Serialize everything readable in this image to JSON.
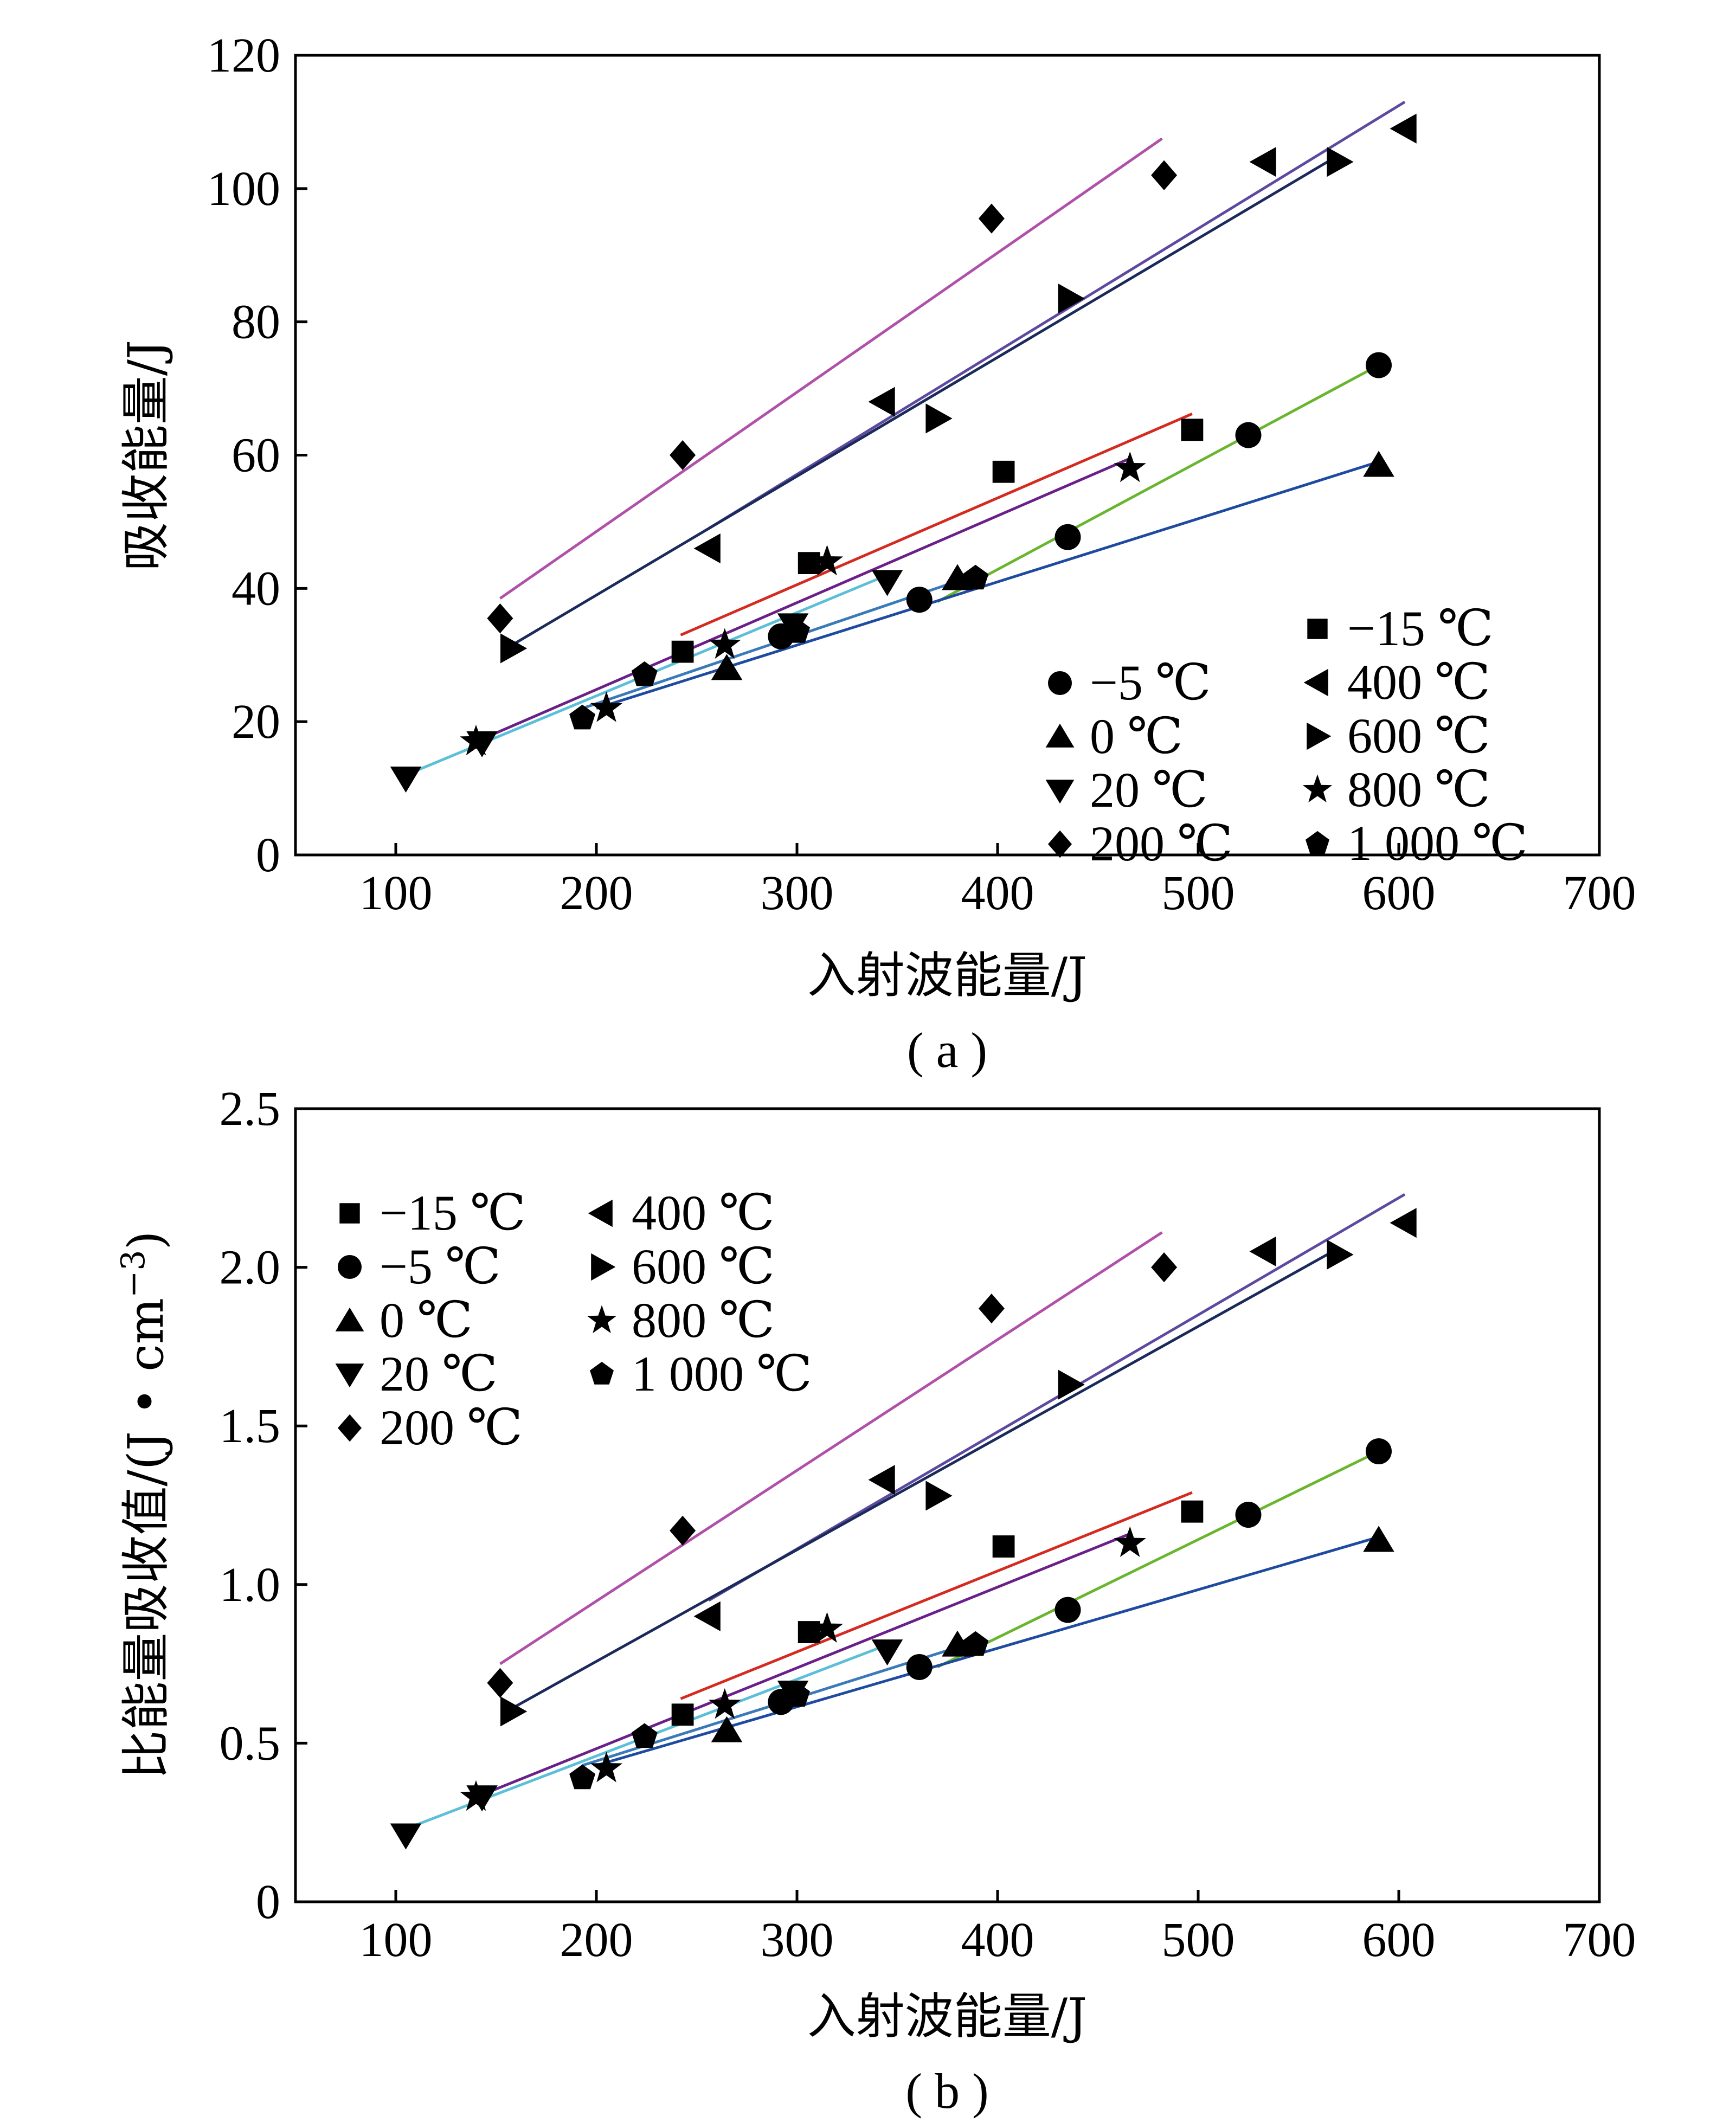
{
  "chart_data": [
    {
      "id": "a",
      "type": "scatter",
      "caption": "( a )",
      "xlabel": "入射波能量/J",
      "ylabel": "吸收能量/J",
      "ylabel_sup": "",
      "ylabel_tail": "",
      "xlim": [
        50,
        700
      ],
      "ylim": [
        0,
        120
      ],
      "xticks": [
        100,
        200,
        300,
        400,
        500,
        600,
        700
      ],
      "yticks": [
        0,
        20,
        40,
        60,
        80,
        100,
        120
      ],
      "ytick_decimals": 0,
      "legend_placement": "bottom-right",
      "series": [
        {
          "name": "−15 ℃",
          "marker": "square",
          "points": [
            [
              243,
              30.5
            ],
            [
              306,
              43.8
            ],
            [
              403,
              57.5
            ],
            [
              497,
              63.8
            ]
          ],
          "fit": {
            "x": [
              242,
              497
            ],
            "y": [
              33.0,
              66.2
            ],
            "color": "#d42a20"
          }
        },
        {
          "name": "−5 ℃",
          "marker": "circle",
          "points": [
            [
              292,
              32.8
            ],
            [
              361,
              38.3
            ],
            [
              435,
              47.7
            ],
            [
              525,
              63.0
            ],
            [
              590,
              73.5
            ]
          ],
          "fit": {
            "x": [
              370,
              590
            ],
            "y": [
              38.0,
              73.5
            ],
            "color": "#6ab52e"
          }
        },
        {
          "name": "0 ℃",
          "marker": "triangle-up",
          "points": [
            [
              265,
              28.0
            ],
            [
              380,
              41.5
            ],
            [
              590,
              58.5
            ]
          ],
          "fit": {
            "x": [
              200,
              590
            ],
            "y": [
              22.0,
              59.0
            ],
            "color": "#1e4aa0"
          }
        },
        {
          "name": "20 ℃",
          "marker": "triangle-down",
          "points": [
            [
              105,
              11.5
            ],
            [
              143,
              16.8
            ],
            [
              298,
              34.5
            ],
            [
              345,
              41.0
            ]
          ],
          "fit": {
            "x": [
              105,
              345
            ],
            "y": [
              12.0,
              42.0
            ],
            "color": "#5bbfd8"
          }
        },
        {
          "name": "200 ℃",
          "marker": "diamond",
          "points": [
            [
              152,
              35.5
            ],
            [
              243,
              60.0
            ],
            [
              397,
              95.5
            ],
            [
              483,
              102.0
            ]
          ],
          "fit": {
            "x": [
              152,
              482
            ],
            "y": [
              38.5,
              107.5
            ],
            "color": "#b050a8"
          }
        },
        {
          "name": "400 ℃",
          "marker": "triangle-left",
          "points": [
            [
              256,
              46.0
            ],
            [
              343,
              68.0
            ],
            [
              533,
              104.0
            ],
            [
              603,
              109.0
            ]
          ],
          "fit": {
            "x": [
              256,
              603
            ],
            "y": [
              49.0,
              113.0
            ],
            "color": "#5d4aa0"
          }
        },
        {
          "name": "600 ℃",
          "marker": "triangle-right",
          "points": [
            [
              158,
              31.0
            ],
            [
              370,
              65.5
            ],
            [
              436,
              83.5
            ],
            [
              570,
              104.0
            ]
          ],
          "fit": {
            "x": [
              158,
              570
            ],
            "y": [
              31.5,
              105.0
            ],
            "color": "#1a2a5a"
          }
        },
        {
          "name": "800 ℃",
          "marker": "star",
          "points": [
            [
              140,
              17.0
            ],
            [
              205,
              22.0
            ],
            [
              264,
              31.5
            ],
            [
              315,
              44.0
            ],
            [
              466,
              58.0
            ]
          ],
          "fit": {
            "x": [
              140,
              466
            ],
            "y": [
              17.0,
              59.5
            ],
            "color": "#6a2088"
          }
        },
        {
          "name": "1 000 ℃",
          "marker": "pentagon",
          "points": [
            [
              193,
              20.5
            ],
            [
              224,
              27.0
            ],
            [
              300,
              33.5
            ],
            [
              389,
              41.5
            ]
          ],
          "fit": {
            "x": [
              193,
              389
            ],
            "y": [
              22.0,
              42.0
            ],
            "color": "#3a7ab8"
          }
        }
      ]
    },
    {
      "id": "b",
      "type": "scatter",
      "caption": "( b )",
      "xlabel": "入射波能量/J",
      "ylabel": "比能量吸收值/(J • cm",
      "ylabel_sup": "−3",
      "ylabel_tail": ")",
      "xlim": [
        50,
        700
      ],
      "ylim": [
        0,
        2.5
      ],
      "xticks": [
        100,
        200,
        300,
        400,
        500,
        600,
        700
      ],
      "yticks": [
        0,
        0.5,
        1.0,
        1.5,
        2.0,
        2.5
      ],
      "ytick_decimals": 1,
      "legend_placement": "top-left",
      "series": [
        {
          "name": "−15 ℃",
          "marker": "square",
          "points": [
            [
              243,
              0.59
            ],
            [
              306,
              0.85
            ],
            [
              403,
              1.12
            ],
            [
              497,
              1.23
            ]
          ],
          "fit": {
            "x": [
              242,
              497
            ],
            "y": [
              0.64,
              1.29
            ],
            "color": "#d42a20"
          }
        },
        {
          "name": "−5 ℃",
          "marker": "circle",
          "points": [
            [
              292,
              0.63
            ],
            [
              361,
              0.74
            ],
            [
              435,
              0.92
            ],
            [
              525,
              1.22
            ],
            [
              590,
              1.42
            ]
          ],
          "fit": {
            "x": [
              370,
              590
            ],
            "y": [
              0.74,
              1.42
            ],
            "color": "#6ab52e"
          }
        },
        {
          "name": "0 ℃",
          "marker": "triangle-up",
          "points": [
            [
              265,
              0.54
            ],
            [
              380,
              0.81
            ],
            [
              590,
              1.14
            ]
          ],
          "fit": {
            "x": [
              200,
              590
            ],
            "y": [
              0.43,
              1.15
            ],
            "color": "#1e4aa0"
          }
        },
        {
          "name": "20 ℃",
          "marker": "triangle-down",
          "points": [
            [
              105,
              0.21
            ],
            [
              143,
              0.33
            ],
            [
              298,
              0.66
            ],
            [
              345,
              0.79
            ]
          ],
          "fit": {
            "x": [
              105,
              345
            ],
            "y": [
              0.23,
              0.81
            ],
            "color": "#5bbfd8"
          }
        },
        {
          "name": "200 ℃",
          "marker": "diamond",
          "points": [
            [
              152,
              0.69
            ],
            [
              243,
              1.17
            ],
            [
              397,
              1.87
            ],
            [
              483,
              2.0
            ]
          ],
          "fit": {
            "x": [
              152,
              482
            ],
            "y": [
              0.75,
              2.11
            ],
            "color": "#b050a8"
          }
        },
        {
          "name": "400 ℃",
          "marker": "triangle-left",
          "points": [
            [
              256,
              0.9
            ],
            [
              343,
              1.33
            ],
            [
              533,
              2.05
            ],
            [
              603,
              2.14
            ]
          ],
          "fit": {
            "x": [
              256,
              603
            ],
            "y": [
              0.95,
              2.23
            ],
            "color": "#5d4aa0"
          }
        },
        {
          "name": "600 ℃",
          "marker": "triangle-right",
          "points": [
            [
              158,
              0.6
            ],
            [
              370,
              1.28
            ],
            [
              436,
              1.63
            ],
            [
              570,
              2.04
            ]
          ],
          "fit": {
            "x": [
              158,
              570
            ],
            "y": [
              0.61,
              2.06
            ],
            "color": "#1a2a5a"
          }
        },
        {
          "name": "800 ℃",
          "marker": "star",
          "points": [
            [
              140,
              0.33
            ],
            [
              205,
              0.42
            ],
            [
              264,
              0.62
            ],
            [
              315,
              0.86
            ],
            [
              466,
              1.13
            ]
          ],
          "fit": {
            "x": [
              140,
              466
            ],
            "y": [
              0.33,
              1.16
            ],
            "color": "#6a2088"
          }
        },
        {
          "name": "1 000 ℃",
          "marker": "pentagon",
          "points": [
            [
              193,
              0.39
            ],
            [
              224,
              0.52
            ],
            [
              300,
              0.65
            ],
            [
              389,
              0.81
            ]
          ],
          "fit": {
            "x": [
              193,
              389
            ],
            "y": [
              0.43,
              0.82
            ],
            "color": "#3a7ab8"
          }
        }
      ]
    }
  ]
}
